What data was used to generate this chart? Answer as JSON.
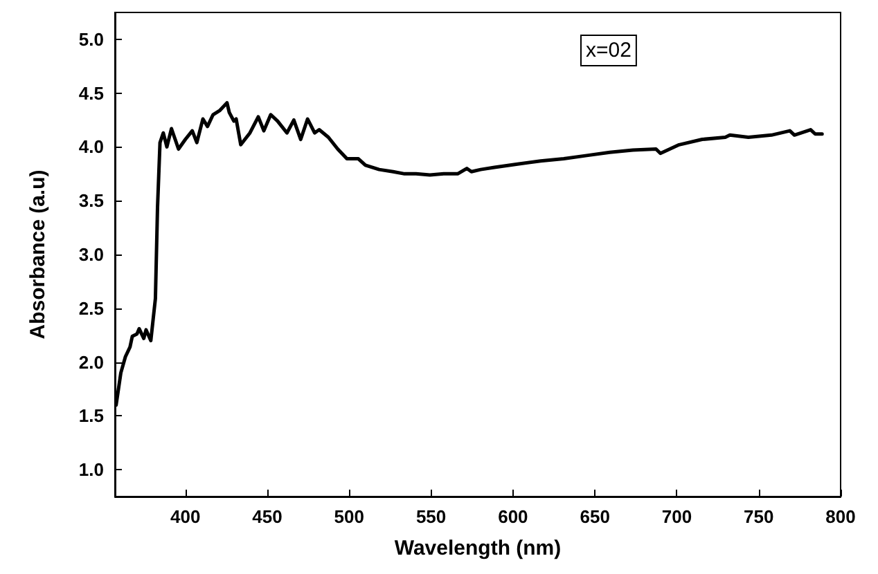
{
  "chart_data": {
    "type": "line",
    "xlabel": "Wavelength (nm)",
    "ylabel": "Absorbance (a.u)",
    "annotations": [
      "x=02"
    ],
    "series": [
      {
        "color": "#000000",
        "x": [
          357.7,
          360.6,
          363.4,
          366.2,
          367.6,
          370.4,
          371.8,
          374.6,
          376,
          378.9,
          381.7,
          383,
          384.5,
          386.5,
          388.7,
          391.5,
          395.8,
          400,
          404.2,
          407,
          410.7,
          413.5,
          416.9,
          421.1,
          425.4,
          426.8,
          429.6,
          431,
          433.8,
          439.4,
          444.5,
          447.9,
          452.1,
          456.3,
          462,
          466.2,
          470.4,
          474.6,
          478.9,
          481.7,
          487.3,
          493,
          498.6,
          505.6,
          509.9,
          518.3,
          526.8,
          533.8,
          540.8,
          549.3,
          557.7,
          566.2,
          571.8,
          574.6,
          580.3,
          588.7,
          602.8,
          616.9,
          631,
          645,
          659.1,
          673.2,
          687.3,
          690,
          701.4,
          715.5,
          729.6,
          732.4,
          743.7,
          757.8,
          769,
          771.8,
          781.7,
          784.5,
          788.7
        ],
        "values": [
          1.6,
          1.9,
          2.05,
          2.14,
          2.24,
          2.26,
          2.31,
          2.22,
          2.3,
          2.2,
          2.59,
          3.44,
          4.04,
          4.13,
          4.0,
          4.17,
          3.98,
          4.07,
          4.15,
          4.04,
          4.26,
          4.19,
          4.3,
          4.34,
          4.41,
          4.32,
          4.24,
          4.26,
          4.02,
          4.13,
          4.28,
          4.15,
          4.3,
          4.24,
          4.13,
          4.25,
          4.07,
          4.26,
          4.13,
          4.16,
          4.09,
          3.98,
          3.89,
          3.89,
          3.83,
          3.79,
          3.77,
          3.75,
          3.75,
          3.74,
          3.75,
          3.75,
          3.8,
          3.77,
          3.79,
          3.81,
          3.84,
          3.87,
          3.89,
          3.92,
          3.95,
          3.97,
          3.98,
          3.94,
          4.02,
          4.07,
          4.09,
          4.11,
          4.09,
          4.11,
          4.15,
          4.11,
          4.16,
          4.12,
          4.12
        ]
      }
    ],
    "xlim": [
      357,
      800
    ],
    "xticks": [
      400,
      450,
      500,
      550,
      600,
      650,
      700,
      750,
      800
    ],
    "ylim": [
      0.75,
      5.25
    ],
    "yticks": [
      {
        "value": 1,
        "label": "1.0"
      },
      1.5,
      {
        "value": 2,
        "label": "2.0"
      },
      2.5,
      {
        "value": 3,
        "label": "3.0"
      },
      3.5,
      {
        "value": 4,
        "label": "4.0"
      },
      4.5,
      {
        "value": 5,
        "label": "5.0"
      }
    ],
    "grid": false,
    "marker": "none",
    "line_style": "solid"
  }
}
